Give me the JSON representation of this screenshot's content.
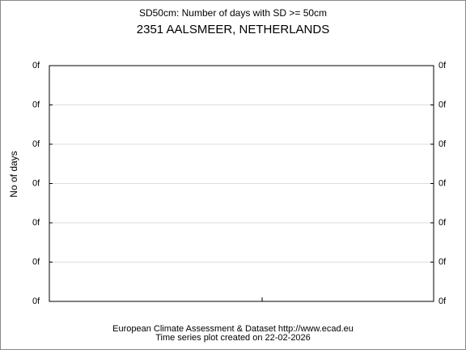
{
  "chart_data": {
    "type": "line",
    "title": "SD50cm: Number of days with SD >= 50cm",
    "subtitle": "2351 AALSMEER, NETHERLANDS",
    "ylabel": "No of days",
    "ytick_labels": [
      "0f",
      "0f",
      "0f",
      "0f",
      "0f",
      "0f",
      "0f"
    ],
    "grid": true,
    "footer": [
      "European Climate Assessment & Dataset  http://www.ecad.eu",
      "Time series plot created on 22-02-2026"
    ]
  }
}
